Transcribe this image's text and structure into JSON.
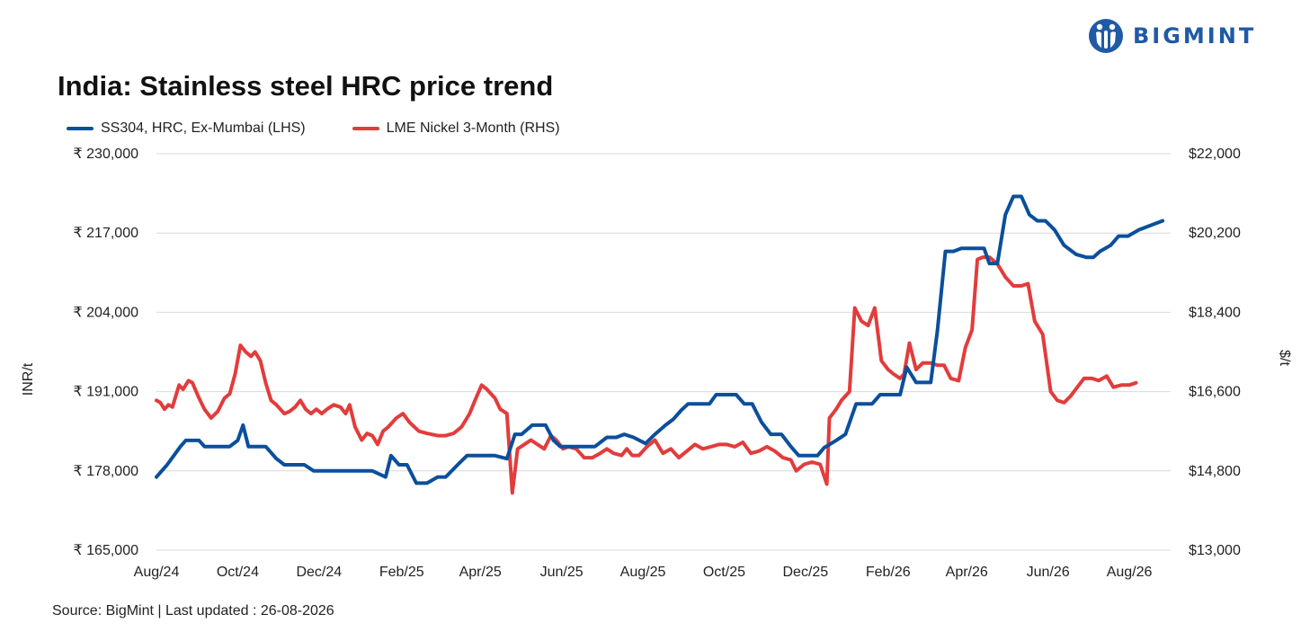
{
  "logo": {
    "text": "BIGMINT",
    "color": "#1f5aa6"
  },
  "title": "India: Stainless steel HRC price trend",
  "source": "Source: BigMint | Last updated : 26-08-2026",
  "colors": {
    "ss304": "#0b4f9c",
    "nickel": "#e23c3c",
    "grid": "#d9d9d9"
  },
  "chart_data": {
    "type": "line",
    "title": "India: Stainless steel HRC price trend",
    "x_tick_labels": [
      "Aug/24",
      "Oct/24",
      "Dec/24",
      "Feb/25",
      "Apr/25",
      "Jun/25",
      "Aug/25",
      "Oct/25",
      "Dec/25",
      "Feb/26",
      "Apr/26",
      "Jun/26",
      "Aug/26"
    ],
    "x_range_months": [
      "Aug/24",
      "Sep/26"
    ],
    "y_left": {
      "label": "INR/t",
      "ticks": [
        "₹ 165,000",
        "₹ 178,000",
        "₹ 191,000",
        "₹ 204,000",
        "₹ 217,000",
        "₹ 230,000"
      ],
      "range": [
        165000,
        230000
      ]
    },
    "y_right": {
      "label": "$/t",
      "ticks": [
        "$13,000",
        "$14,800",
        "$16,600",
        "$18,400",
        "$20,200",
        "$22,000"
      ],
      "range": [
        13000,
        22000
      ]
    },
    "grid": "horizontal",
    "legend_position": "top-left",
    "series": [
      {
        "name": "SS304, HRC, Ex-Mumbai (LHS)",
        "axis": "left",
        "points": [
          [
            "2024-08-01",
            177000
          ],
          [
            "2024-08-05",
            178000
          ],
          [
            "2024-08-09",
            179000
          ],
          [
            "2024-08-14",
            180500
          ],
          [
            "2024-08-19",
            182000
          ],
          [
            "2024-08-23",
            183000
          ],
          [
            "2024-09-02",
            183000
          ],
          [
            "2024-09-06",
            182000
          ],
          [
            "2024-09-16",
            182000
          ],
          [
            "2024-09-25",
            182000
          ],
          [
            "2024-10-01",
            183000
          ],
          [
            "2024-10-05",
            185500
          ],
          [
            "2024-10-09",
            182000
          ],
          [
            "2024-10-22",
            182000
          ],
          [
            "2024-10-30",
            180000
          ],
          [
            "2024-11-05",
            179000
          ],
          [
            "2024-11-20",
            179000
          ],
          [
            "2024-11-27",
            178000
          ],
          [
            "2024-12-10",
            178000
          ],
          [
            "2024-12-25",
            178000
          ],
          [
            "2025-01-10",
            178000
          ],
          [
            "2025-01-20",
            177000
          ],
          [
            "2025-01-24",
            180500
          ],
          [
            "2025-01-30",
            179000
          ],
          [
            "2025-02-05",
            179000
          ],
          [
            "2025-02-12",
            176000
          ],
          [
            "2025-02-20",
            176000
          ],
          [
            "2025-02-28",
            177000
          ],
          [
            "2025-03-06",
            177000
          ],
          [
            "2025-03-15",
            179000
          ],
          [
            "2025-03-22",
            180500
          ],
          [
            "2025-04-05",
            180500
          ],
          [
            "2025-04-12",
            180500
          ],
          [
            "2025-04-21",
            180000
          ],
          [
            "2025-04-27",
            184000
          ],
          [
            "2025-05-02",
            184000
          ],
          [
            "2025-05-10",
            185500
          ],
          [
            "2025-05-20",
            185500
          ],
          [
            "2025-05-26",
            183000
          ],
          [
            "2025-05-31",
            182000
          ],
          [
            "2025-06-10",
            182000
          ],
          [
            "2025-06-20",
            182000
          ],
          [
            "2025-06-26",
            182000
          ],
          [
            "2025-07-05",
            183500
          ],
          [
            "2025-07-12",
            183500
          ],
          [
            "2025-07-18",
            184000
          ],
          [
            "2025-07-25",
            183500
          ],
          [
            "2025-08-03",
            182500
          ],
          [
            "2025-08-10",
            184000
          ],
          [
            "2025-08-18",
            185500
          ],
          [
            "2025-08-24",
            186500
          ],
          [
            "2025-08-30",
            188000
          ],
          [
            "2025-09-04",
            189000
          ],
          [
            "2025-09-10",
            189000
          ],
          [
            "2025-09-20",
            189000
          ],
          [
            "2025-09-25",
            190500
          ],
          [
            "2025-10-05",
            190500
          ],
          [
            "2025-10-10",
            190500
          ],
          [
            "2025-10-16",
            189000
          ],
          [
            "2025-10-22",
            189000
          ],
          [
            "2025-10-29",
            186000
          ],
          [
            "2025-11-05",
            184000
          ],
          [
            "2025-11-13",
            184000
          ],
          [
            "2025-11-20",
            182000
          ],
          [
            "2025-11-26",
            180500
          ],
          [
            "2025-12-05",
            180500
          ],
          [
            "2025-12-10",
            180500
          ],
          [
            "2025-12-15",
            181800
          ],
          [
            "2025-12-24",
            183000
          ],
          [
            "2025-12-31",
            184000
          ],
          [
            "2026-01-08",
            189000
          ],
          [
            "2026-01-20",
            189000
          ],
          [
            "2026-01-26",
            190500
          ],
          [
            "2026-02-05",
            190500
          ],
          [
            "2026-02-10",
            190500
          ],
          [
            "2026-02-15",
            195000
          ],
          [
            "2026-02-22",
            192500
          ],
          [
            "2026-03-01",
            192500
          ],
          [
            "2026-03-05",
            192500
          ],
          [
            "2026-03-10",
            201000
          ],
          [
            "2026-03-16",
            214000
          ],
          [
            "2026-03-22",
            214000
          ],
          [
            "2026-03-28",
            214500
          ],
          [
            "2026-04-10",
            214500
          ],
          [
            "2026-04-14",
            214500
          ],
          [
            "2026-04-18",
            212000
          ],
          [
            "2026-04-24",
            212000
          ],
          [
            "2026-04-30",
            220000
          ],
          [
            "2026-05-06",
            223000
          ],
          [
            "2026-05-12",
            223000
          ],
          [
            "2026-05-18",
            220000
          ],
          [
            "2026-05-24",
            219000
          ],
          [
            "2026-05-30",
            219000
          ],
          [
            "2026-06-06",
            217500
          ],
          [
            "2026-06-13",
            215000
          ],
          [
            "2026-06-22",
            213500
          ],
          [
            "2026-06-30",
            213000
          ],
          [
            "2026-07-05",
            213000
          ],
          [
            "2026-07-10",
            214000
          ],
          [
            "2026-07-18",
            215000
          ],
          [
            "2026-07-24",
            216500
          ],
          [
            "2026-07-31",
            216500
          ],
          [
            "2026-08-08",
            217500
          ],
          [
            "2026-08-14",
            218000
          ],
          [
            "2026-08-20",
            218500
          ],
          [
            "2026-08-26",
            219000
          ]
        ]
      },
      {
        "name": "LME Nickel 3-Month (RHS)",
        "axis": "right",
        "points": [
          [
            "2024-08-01",
            16400
          ],
          [
            "2024-08-04",
            16350
          ],
          [
            "2024-08-07",
            16200
          ],
          [
            "2024-08-10",
            16300
          ],
          [
            "2024-08-13",
            16250
          ],
          [
            "2024-08-18",
            16750
          ],
          [
            "2024-08-21",
            16650
          ],
          [
            "2024-08-25",
            16850
          ],
          [
            "2024-08-28",
            16800
          ],
          [
            "2024-09-02",
            16450
          ],
          [
            "2024-09-06",
            16200
          ],
          [
            "2024-09-11",
            16000
          ],
          [
            "2024-09-16",
            16150
          ],
          [
            "2024-09-21",
            16450
          ],
          [
            "2024-09-25",
            16550
          ],
          [
            "2024-09-29",
            17000
          ],
          [
            "2024-10-03",
            17650
          ],
          [
            "2024-10-07",
            17500
          ],
          [
            "2024-10-11",
            17400
          ],
          [
            "2024-10-14",
            17500
          ],
          [
            "2024-10-18",
            17300
          ],
          [
            "2024-10-22",
            16800
          ],
          [
            "2024-10-26",
            16400
          ],
          [
            "2024-10-30",
            16300
          ],
          [
            "2024-11-05",
            16100
          ],
          [
            "2024-11-09",
            16150
          ],
          [
            "2024-11-13",
            16250
          ],
          [
            "2024-11-17",
            16400
          ],
          [
            "2024-11-21",
            16200
          ],
          [
            "2024-11-25",
            16100
          ],
          [
            "2024-11-29",
            16200
          ],
          [
            "2024-12-03",
            16100
          ],
          [
            "2024-12-07",
            16200
          ],
          [
            "2024-12-12",
            16300
          ],
          [
            "2024-12-17",
            16250
          ],
          [
            "2024-12-21",
            16100
          ],
          [
            "2024-12-24",
            16300
          ],
          [
            "2024-12-28",
            15800
          ],
          [
            "2025-01-02",
            15500
          ],
          [
            "2025-01-06",
            15650
          ],
          [
            "2025-01-10",
            15600
          ],
          [
            "2025-01-14",
            15400
          ],
          [
            "2025-01-18",
            15700
          ],
          [
            "2025-01-22",
            15800
          ],
          [
            "2025-01-28",
            16000
          ],
          [
            "2025-02-02",
            16100
          ],
          [
            "2025-02-07",
            15900
          ],
          [
            "2025-02-14",
            15700
          ],
          [
            "2025-02-20",
            15650
          ],
          [
            "2025-02-28",
            15600
          ],
          [
            "2025-03-06",
            15600
          ],
          [
            "2025-03-12",
            15650
          ],
          [
            "2025-03-18",
            15800
          ],
          [
            "2025-03-24",
            16100
          ],
          [
            "2025-03-28",
            16400
          ],
          [
            "2025-04-02",
            16750
          ],
          [
            "2025-04-06",
            16650
          ],
          [
            "2025-04-12",
            16450
          ],
          [
            "2025-04-16",
            16200
          ],
          [
            "2025-04-21",
            16100
          ],
          [
            "2025-04-25",
            14300
          ],
          [
            "2025-04-29",
            15300
          ],
          [
            "2025-05-04",
            15400
          ],
          [
            "2025-05-09",
            15500
          ],
          [
            "2025-05-14",
            15400
          ],
          [
            "2025-05-19",
            15300
          ],
          [
            "2025-05-24",
            15600
          ],
          [
            "2025-05-28",
            15500
          ],
          [
            "2025-06-02",
            15300
          ],
          [
            "2025-06-06",
            15350
          ],
          [
            "2025-06-12",
            15300
          ],
          [
            "2025-06-18",
            15100
          ],
          [
            "2025-06-24",
            15100
          ],
          [
            "2025-06-30",
            15200
          ],
          [
            "2025-07-05",
            15300
          ],
          [
            "2025-07-10",
            15200
          ],
          [
            "2025-07-16",
            15150
          ],
          [
            "2025-07-20",
            15300
          ],
          [
            "2025-07-24",
            15150
          ],
          [
            "2025-07-29",
            15150
          ],
          [
            "2025-08-04",
            15350
          ],
          [
            "2025-08-10",
            15500
          ],
          [
            "2025-08-16",
            15200
          ],
          [
            "2025-08-22",
            15300
          ],
          [
            "2025-08-28",
            15100
          ],
          [
            "2025-09-03",
            15250
          ],
          [
            "2025-09-09",
            15400
          ],
          [
            "2025-09-15",
            15300
          ],
          [
            "2025-09-21",
            15350
          ],
          [
            "2025-09-27",
            15400
          ],
          [
            "2025-10-03",
            15400
          ],
          [
            "2025-10-09",
            15350
          ],
          [
            "2025-10-15",
            15450
          ],
          [
            "2025-10-21",
            15200
          ],
          [
            "2025-10-27",
            15250
          ],
          [
            "2025-11-02",
            15350
          ],
          [
            "2025-11-08",
            15250
          ],
          [
            "2025-11-14",
            15100
          ],
          [
            "2025-11-20",
            15050
          ],
          [
            "2025-11-24",
            14800
          ],
          [
            "2025-11-30",
            14950
          ],
          [
            "2025-12-06",
            15000
          ],
          [
            "2025-12-12",
            14950
          ],
          [
            "2025-12-17",
            14500
          ],
          [
            "2025-12-19",
            16000
          ],
          [
            "2025-12-24",
            16200
          ],
          [
            "2025-12-28",
            16400
          ],
          [
            "2026-01-03",
            16600
          ],
          [
            "2026-01-07",
            18500
          ],
          [
            "2026-01-12",
            18200
          ],
          [
            "2026-01-17",
            18100
          ],
          [
            "2026-01-22",
            18500
          ],
          [
            "2026-01-27",
            17300
          ],
          [
            "2026-02-01",
            17100
          ],
          [
            "2026-02-05",
            17000
          ],
          [
            "2026-02-10",
            16900
          ],
          [
            "2026-02-13",
            17000
          ],
          [
            "2026-02-17",
            17700
          ],
          [
            "2026-02-22",
            17100
          ],
          [
            "2026-02-27",
            17250
          ],
          [
            "2026-03-05",
            17250
          ],
          [
            "2026-03-10",
            17200
          ],
          [
            "2026-03-15",
            17200
          ],
          [
            "2026-03-20",
            16900
          ],
          [
            "2026-03-26",
            16850
          ],
          [
            "2026-03-31",
            17600
          ],
          [
            "2026-04-05",
            18000
          ],
          [
            "2026-04-09",
            19600
          ],
          [
            "2026-04-13",
            19650
          ],
          [
            "2026-04-18",
            19650
          ],
          [
            "2026-04-24",
            19500
          ],
          [
            "2026-04-30",
            19200
          ],
          [
            "2026-05-06",
            19000
          ],
          [
            "2026-05-12",
            19000
          ],
          [
            "2026-05-17",
            19050
          ],
          [
            "2026-05-22",
            18200
          ],
          [
            "2026-05-28",
            17900
          ],
          [
            "2026-06-03",
            16600
          ],
          [
            "2026-06-08",
            16400
          ],
          [
            "2026-06-13",
            16350
          ],
          [
            "2026-06-18",
            16500
          ],
          [
            "2026-06-23",
            16700
          ],
          [
            "2026-06-28",
            16900
          ],
          [
            "2026-07-04",
            16900
          ],
          [
            "2026-07-09",
            16850
          ],
          [
            "2026-07-15",
            16950
          ],
          [
            "2026-07-20",
            16700
          ],
          [
            "2026-07-26",
            16750
          ],
          [
            "2026-08-01",
            16750
          ],
          [
            "2026-08-06",
            16800
          ]
        ]
      }
    ]
  }
}
